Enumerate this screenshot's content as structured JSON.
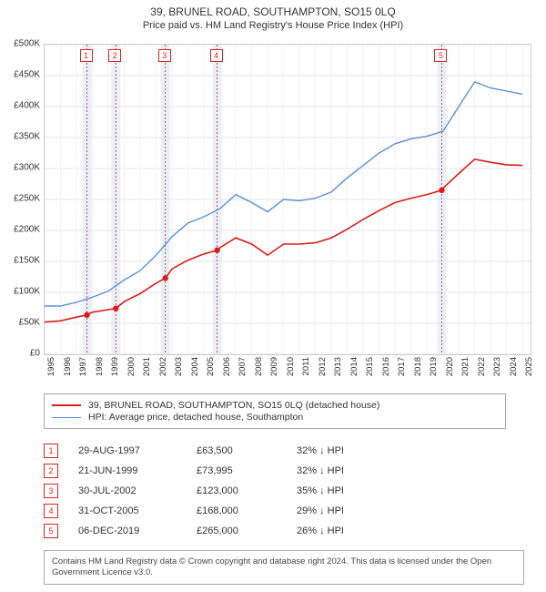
{
  "title": "39, BRUNEL ROAD, SOUTHAMPTON, SO15 0LQ",
  "subtitle": "Price paid vs. HM Land Registry's House Price Index (HPI)",
  "chart": {
    "type": "line",
    "x_domain": [
      1995,
      2025.5
    ],
    "y_domain": [
      0,
      500000
    ],
    "y_ticks": [
      0,
      50000,
      100000,
      150000,
      200000,
      250000,
      300000,
      350000,
      400000,
      450000,
      500000
    ],
    "y_tick_labels": [
      "£0",
      "£50K",
      "£100K",
      "£150K",
      "£200K",
      "£250K",
      "£300K",
      "£350K",
      "£400K",
      "£450K",
      "£500K"
    ],
    "x_ticks": [
      1995,
      1996,
      1997,
      1998,
      1999,
      2000,
      2001,
      2002,
      2003,
      2004,
      2005,
      2006,
      2007,
      2008,
      2009,
      2010,
      2011,
      2012,
      2013,
      2014,
      2015,
      2016,
      2017,
      2018,
      2019,
      2020,
      2021,
      2022,
      2023,
      2024,
      2025
    ],
    "grid_color": "#e6e6e6",
    "background_color": "#ffffff",
    "series": [
      {
        "name": "HPI: Average price, detached house, Southampton",
        "color": "#5b8fd6",
        "width": 1.4,
        "points": [
          [
            1995,
            78000
          ],
          [
            1996,
            78000
          ],
          [
            1997,
            84000
          ],
          [
            1998,
            92000
          ],
          [
            1999,
            102000
          ],
          [
            2000,
            120000
          ],
          [
            2001,
            135000
          ],
          [
            2002,
            160000
          ],
          [
            2003,
            190000
          ],
          [
            2004,
            212000
          ],
          [
            2005,
            222000
          ],
          [
            2006,
            235000
          ],
          [
            2007,
            258000
          ],
          [
            2008,
            245000
          ],
          [
            2009,
            230000
          ],
          [
            2010,
            250000
          ],
          [
            2011,
            248000
          ],
          [
            2012,
            252000
          ],
          [
            2013,
            262000
          ],
          [
            2014,
            285000
          ],
          [
            2015,
            305000
          ],
          [
            2016,
            325000
          ],
          [
            2017,
            340000
          ],
          [
            2018,
            348000
          ],
          [
            2019,
            352000
          ],
          [
            2020,
            360000
          ],
          [
            2021,
            400000
          ],
          [
            2022,
            440000
          ],
          [
            2023,
            430000
          ],
          [
            2024,
            425000
          ],
          [
            2025,
            420000
          ]
        ]
      },
      {
        "name": "39, BRUNEL ROAD, SOUTHAMPTON, SO15 0LQ (detached house)",
        "color": "#d81e1e",
        "width": 1.6,
        "points": [
          [
            1995,
            52000
          ],
          [
            1996,
            54000
          ],
          [
            1997,
            60000
          ],
          [
            1997.66,
            63500
          ],
          [
            1998,
            68000
          ],
          [
            1999,
            72000
          ],
          [
            1999.47,
            73995
          ],
          [
            2000,
            85000
          ],
          [
            2001,
            98000
          ],
          [
            2002,
            115000
          ],
          [
            2002.58,
            123000
          ],
          [
            2003,
            138000
          ],
          [
            2004,
            152000
          ],
          [
            2005,
            162000
          ],
          [
            2005.83,
            168000
          ],
          [
            2006,
            172000
          ],
          [
            2007,
            188000
          ],
          [
            2008,
            178000
          ],
          [
            2009,
            160000
          ],
          [
            2010,
            178000
          ],
          [
            2011,
            178000
          ],
          [
            2012,
            180000
          ],
          [
            2013,
            188000
          ],
          [
            2014,
            202000
          ],
          [
            2015,
            218000
          ],
          [
            2016,
            232000
          ],
          [
            2017,
            245000
          ],
          [
            2018,
            252000
          ],
          [
            2019,
            258000
          ],
          [
            2019.93,
            265000
          ],
          [
            2020,
            268000
          ],
          [
            2021,
            292000
          ],
          [
            2022,
            315000
          ],
          [
            2023,
            310000
          ],
          [
            2024,
            306000
          ],
          [
            2025,
            305000
          ]
        ]
      }
    ],
    "markers": [
      {
        "idx": "1",
        "x": 1997.66,
        "y": 63500,
        "band_color": "#e6eef8",
        "line_color": "#d81e1e"
      },
      {
        "idx": "2",
        "x": 1999.47,
        "y": 73995,
        "band_color": "#e6eef8",
        "line_color": "#d81e1e"
      },
      {
        "idx": "3",
        "x": 2002.58,
        "y": 123000,
        "band_color": "#e6eef8",
        "line_color": "#d81e1e"
      },
      {
        "idx": "4",
        "x": 2005.83,
        "y": 168000,
        "band_color": "#e6eef8",
        "line_color": "#d81e1e"
      },
      {
        "idx": "5",
        "x": 2019.93,
        "y": 265000,
        "band_color": "#e6eef8",
        "line_color": "#d81e1e"
      }
    ]
  },
  "legend": [
    {
      "label": "39, BRUNEL ROAD, SOUTHAMPTON, SO15 0LQ (detached house)",
      "color": "#d81e1e",
      "width": 2
    },
    {
      "label": "HPI: Average price, detached house, Southampton",
      "color": "#5b8fd6",
      "width": 1.5
    }
  ],
  "transactions": [
    {
      "idx": "1",
      "date": "29-AUG-1997",
      "price": "£63,500",
      "diff": "32% ↓ HPI"
    },
    {
      "idx": "2",
      "date": "21-JUN-1999",
      "price": "£73,995",
      "diff": "32% ↓ HPI"
    },
    {
      "idx": "3",
      "date": "30-JUL-2002",
      "price": "£123,000",
      "diff": "35% ↓ HPI"
    },
    {
      "idx": "4",
      "date": "31-OCT-2005",
      "price": "£168,000",
      "diff": "29% ↓ HPI"
    },
    {
      "idx": "5",
      "date": "06-DEC-2019",
      "price": "£265,000",
      "diff": "26% ↓ HPI"
    }
  ],
  "footer": "Contains HM Land Registry data © Crown copyright and database right 2024. This data is licensed under the Open Government Licence v3.0."
}
